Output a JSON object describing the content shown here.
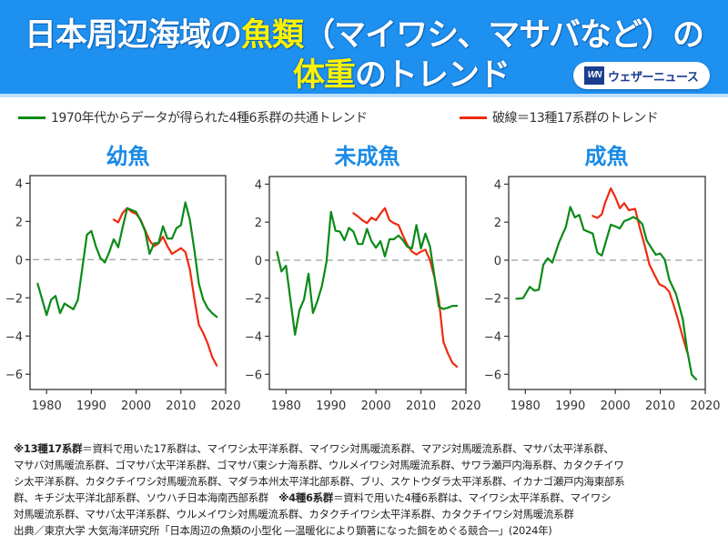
{
  "header": {
    "title_line1_part1": "日本周辺海域の",
    "title_line1_highlight": "魚類",
    "title_line1_part2": "（マイワシ、マサバなど）の",
    "title_line2_highlight": "体重",
    "title_line2_part2": "のトレンド",
    "logo_mark": "WN",
    "logo_text": "ウェザーニュース",
    "background_color": "#1e90f0",
    "highlight_color": "#fff200"
  },
  "legend": {
    "green_label": "1970年代からデータが得られた4種6系群の共通トレンド",
    "red_label": "破線＝13種17系群のトレンド",
    "green_color": "#0a8a16",
    "red_color": "#f02a10"
  },
  "chart_data": [
    {
      "type": "line",
      "title": "幼魚",
      "xlabel": "",
      "ylabel": "",
      "xlim": [
        1976.3,
        2020
      ],
      "ylim": [
        -6.8,
        4.4
      ],
      "x_ticks": [
        "1980",
        "1990",
        "2000",
        "2010",
        "2020"
      ],
      "y_ticks": [
        "4",
        "2",
        "0",
        "-2",
        "-4",
        "-6"
      ],
      "zero_line": "dashed",
      "grid": false,
      "series": [
        {
          "name": "1970年代からデータが得られた4種6系群の共通トレンド",
          "color": "#0a8a16",
          "x": [
            1978,
            1980,
            1981,
            1982,
            1983,
            1984,
            1986,
            1987,
            1988,
            1989,
            1990,
            1991,
            1992,
            1993,
            1994,
            1995,
            1996,
            1997,
            1998,
            1999,
            2000,
            2001,
            2002,
            2003,
            2004,
            2005,
            2006,
            2007,
            2008,
            2009,
            2010,
            2011,
            2012,
            2013,
            2014,
            2015,
            2016,
            2017,
            2018
          ],
          "y": [
            -1.26,
            -2.9,
            -2.1,
            -1.9,
            -2.8,
            -2.3,
            -2.6,
            -2.1,
            -0.4,
            1.3,
            1.5,
            0.7,
            0.1,
            -0.15,
            0.4,
            1.07,
            0.65,
            1.7,
            2.7,
            2.6,
            2.5,
            2.05,
            1.5,
            0.3,
            0.85,
            0.87,
            1.75,
            1.1,
            1.1,
            1.65,
            1.8,
            3.0,
            2.1,
            0.5,
            -1.25,
            -2.1,
            -2.55,
            -2.8,
            -3.0
          ]
        },
        {
          "name": "破線＝13種17系群のトレンド",
          "color": "#f02a10",
          "x": [
            1995,
            1996,
            1997,
            1998,
            1999,
            2000,
            2001,
            2002,
            2003,
            2004,
            2005,
            2006,
            2007,
            2008,
            2009,
            2010,
            2011,
            2012,
            2013,
            2014,
            2015,
            2016,
            2017,
            2018
          ],
          "y": [
            2.1,
            1.95,
            2.45,
            2.7,
            2.5,
            2.4,
            2.1,
            1.55,
            1.0,
            0.7,
            0.85,
            1.2,
            0.7,
            0.3,
            0.45,
            0.6,
            0.4,
            -0.5,
            -2.05,
            -3.4,
            -3.85,
            -4.4,
            -5.1,
            -5.55
          ]
        }
      ]
    },
    {
      "type": "line",
      "title": "未成魚",
      "xlabel": "",
      "ylabel": "",
      "xlim": [
        1976.3,
        2020
      ],
      "ylim": [
        -6.8,
        4.4
      ],
      "x_ticks": [
        "1980",
        "1990",
        "2000",
        "2010",
        "2020"
      ],
      "y_ticks": [
        "4",
        "2",
        "0",
        "-2",
        "-4",
        "-6"
      ],
      "zero_line": "dashed",
      "grid": false,
      "series": [
        {
          "name": "1970年代からデータが得られた4種6系群の共通トレンド",
          "color": "#0a8a16",
          "x": [
            1978,
            1979,
            1980,
            1981,
            1982,
            1983,
            1984,
            1985,
            1986,
            1987,
            1988,
            1989,
            1990,
            1991,
            1992,
            1993,
            1994,
            1995,
            1996,
            1997,
            1998,
            1999,
            2000,
            2001,
            2002,
            2003,
            2004,
            2005,
            2006,
            2007,
            2008,
            2009,
            2010,
            2011,
            2012,
            2013,
            2014,
            2015,
            2016,
            2017,
            2018
          ],
          "y": [
            0.43,
            -0.59,
            -0.29,
            -2.1,
            -3.92,
            -2.62,
            -2.06,
            -0.71,
            -2.78,
            -2.14,
            -1.35,
            -0.08,
            2.55,
            1.55,
            1.5,
            1.05,
            1.7,
            1.5,
            0.85,
            0.85,
            1.65,
            1.0,
            0.65,
            1.0,
            0.2,
            1.1,
            1.1,
            1.3,
            1.05,
            0.7,
            0.63,
            1.85,
            0.62,
            1.4,
            0.73,
            -0.85,
            -2.45,
            -2.57,
            -2.5,
            -2.4,
            -2.4
          ]
        },
        {
          "name": "破線＝13種17系群のトレンド",
          "color": "#f02a10",
          "x": [
            1995,
            1996,
            1997,
            1998,
            1999,
            2000,
            2001,
            2002,
            2003,
            2004,
            2005,
            2006,
            2007,
            2008,
            2009,
            2010,
            2011,
            2012,
            2013,
            2014,
            2015,
            2016,
            2017,
            2018
          ],
          "y": [
            2.47,
            2.3,
            2.1,
            1.95,
            2.24,
            2.1,
            2.45,
            2.74,
            2.1,
            1.95,
            1.85,
            1.3,
            0.8,
            0.45,
            0.3,
            0.45,
            0.55,
            0.0,
            -0.9,
            -2.1,
            -4.3,
            -4.9,
            -5.4,
            -5.6
          ]
        }
      ]
    },
    {
      "type": "line",
      "title": "成魚",
      "xlabel": "",
      "ylabel": "",
      "xlim": [
        1976.3,
        2020
      ],
      "ylim": [
        -6.8,
        4.4
      ],
      "x_ticks": [
        "1980",
        "1990",
        "2000",
        "2010",
        "2020"
      ],
      "y_ticks": [
        "4",
        "2",
        "0",
        "-2",
        "-4",
        "-6"
      ],
      "zero_line": "dashed",
      "grid": false,
      "series": [
        {
          "name": "1970年代からデータが得られた4種6系群の共通トレンド",
          "color": "#0a8a16",
          "x": [
            1978,
            1979.5,
            1981,
            1982,
            1983,
            1984,
            1985,
            1986,
            1987.5,
            1989,
            1990,
            1991,
            1992,
            1993,
            1995,
            1996,
            1997,
            1999,
            2000,
            2001,
            2002,
            2003,
            2004,
            2005,
            2006,
            2007,
            2009,
            2010,
            2011,
            2012,
            2013.5,
            2015,
            2016,
            2017,
            2018
          ],
          "y": [
            -2.03,
            -2.0,
            -1.4,
            -1.6,
            -1.55,
            -0.24,
            0.1,
            -0.13,
            0.95,
            1.75,
            2.8,
            2.25,
            2.38,
            1.6,
            1.4,
            0.4,
            0.24,
            1.87,
            1.78,
            1.67,
            2.06,
            2.14,
            2.27,
            2.14,
            1.9,
            1.03,
            0.29,
            0.35,
            0.03,
            -1.03,
            -1.78,
            -3.1,
            -4.76,
            -6.03,
            -6.27
          ]
        },
        {
          "name": "破線＝13種17系群のトレンド",
          "color": "#f02a10",
          "x": [
            1995,
            1996,
            1997,
            1997.7,
            1999,
            2000,
            2001,
            2002,
            2003,
            2004.4,
            2005.4,
            2006.5,
            2007.6,
            2008.7,
            2009.8,
            2011,
            2012,
            2013,
            2014,
            2015,
            2016
          ],
          "y": [
            2.33,
            2.22,
            2.41,
            3.0,
            3.78,
            3.33,
            2.73,
            3.0,
            2.63,
            2.7,
            1.75,
            0.8,
            -0.24,
            -0.76,
            -1.27,
            -1.4,
            -1.67,
            -2.38,
            -3.17,
            -4.05,
            -4.84
          ]
        }
      ]
    }
  ],
  "footnotes": {
    "line1_prefix": "※13種17系群",
    "line1_rest": "＝資料で用いた17系群は、マイワシ太平洋系群、マイワシ対馬暖流系群、マアジ対馬暖流系群、マサバ太平洋系群、",
    "line2": "マサバ対馬暖流系群、ゴマサバ太平洋系群、ゴマサバ東シナ海系群、ウルメイワシ対馬暖流系群、サワラ瀬戸内海系群、カタクチイワ",
    "line3": "シ太平洋系群、カタクチイワシ対馬暖流系群、マダラ本州太平洋北部系群、ブリ、スケトウダラ太平洋系群、イカナゴ瀬戸内海東部系",
    "line4_part1": "群、キチジ太平洋北部系群、ソウハチ日本海南西部系群　",
    "line4_bold": "※4種6系群",
    "line4_part2": "＝資料で用いた4種6系群は、マイワシ太平洋系群、マイワシ",
    "line5": "対馬暖流系群、マサバ太平洋系群、ウルメイワシ対馬暖流系群、カタクチイワシ太平洋系群、カタクチイワシ対馬暖流系群",
    "line6": "出典／東京大学 大気海洋研究所「日本周辺の魚類の小型化 ―温暖化により顕著になった餌をめぐる競合―」(2024年)"
  }
}
